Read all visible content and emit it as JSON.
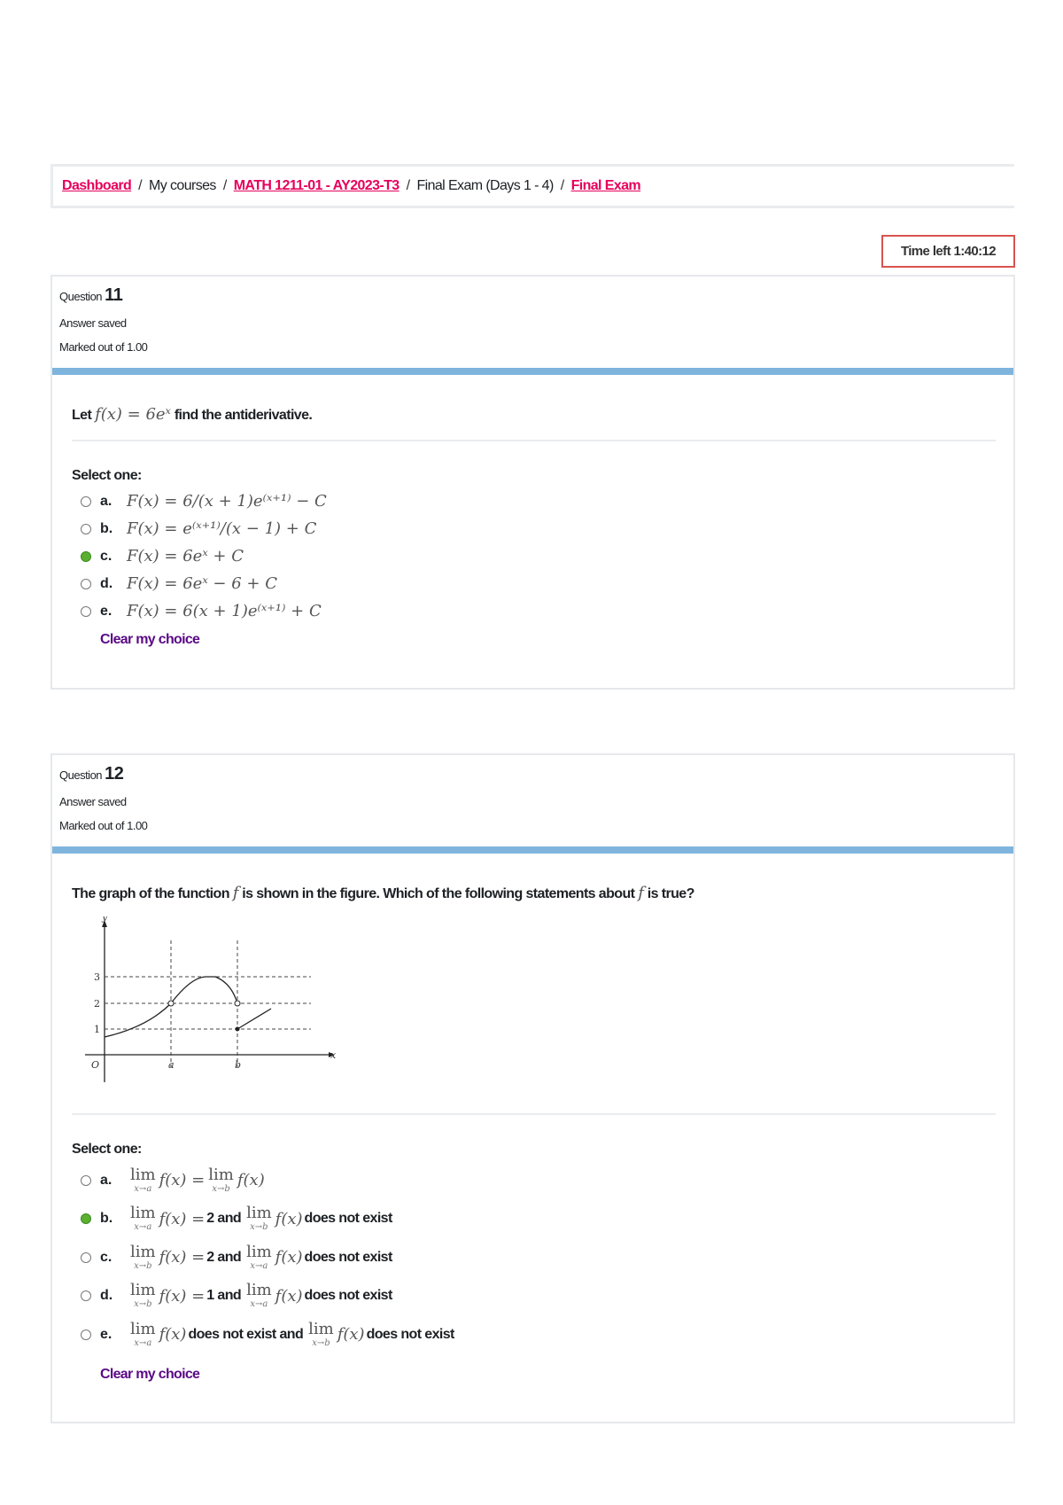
{
  "breadcrumb": [
    {
      "label": "Dashboard",
      "link": true
    },
    {
      "label": "My courses",
      "link": false
    },
    {
      "label": "MATH 1211-01 - AY2023-T3",
      "link": true
    },
    {
      "label": "Final Exam (Days 1 - 4)",
      "link": false
    },
    {
      "label": "Final Exam",
      "link": true
    }
  ],
  "breadcrumb_sep": "/",
  "timer": "Time left 1:40:12",
  "q11": {
    "question_label": "Question",
    "number": "11",
    "status": "Answer saved",
    "marked": "Marked out of 1.00",
    "text_pre": "Let",
    "math": "f(x) = 6eˣ",
    "text_post": "find the antiderivative.",
    "select_label": "Select one:",
    "options": [
      {
        "letter": "a.",
        "math": "F(x) = 6/(x + 1)e⁽ˣ⁺¹⁾ − C",
        "selected": false
      },
      {
        "letter": "b.",
        "math": "F(x) = e⁽ˣ⁺¹⁾/(x − 1) + C",
        "selected": false
      },
      {
        "letter": "c.",
        "math": "F(x) = 6eˣ + C",
        "selected": true
      },
      {
        "letter": "d.",
        "math": "F(x) = 6eˣ − 6 + C",
        "selected": false
      },
      {
        "letter": "e.",
        "math": "F(x) = 6(x + 1)e⁽ˣ⁺¹⁾ + C",
        "selected": false
      }
    ],
    "clear": "Clear my choice"
  },
  "q12": {
    "question_label": "Question",
    "number": "12",
    "status": "Answer saved",
    "marked": "Marked out of 1.00",
    "text_pre": "The graph of the function",
    "math": "f",
    "text_mid": "is shown in the figure. Which of the following statements about",
    "math2": "f",
    "text_post": "is true?",
    "graph_labels": {
      "y": "y",
      "x": "x",
      "o": "O",
      "a": "a",
      "b": "b",
      "t1": "1",
      "t2": "2",
      "t3": "3"
    },
    "select_label": "Select one:",
    "options": [
      {
        "letter": "a.",
        "selected": false,
        "parts": [
          {
            "lim": "x→a"
          },
          {
            "m": "f(x) ="
          },
          {
            "lim": "x→b"
          },
          {
            "m": "f(x)"
          }
        ]
      },
      {
        "letter": "b.",
        "selected": true,
        "parts": [
          {
            "lim": "x→a"
          },
          {
            "m": "f(x) ="
          },
          {
            "t": "2 and"
          },
          {
            "lim": "x→b"
          },
          {
            "m": "f(x)"
          },
          {
            "t": "does not exist"
          }
        ]
      },
      {
        "letter": "c.",
        "selected": false,
        "parts": [
          {
            "lim": "x→b"
          },
          {
            "m": "f(x) ="
          },
          {
            "t": "2 and"
          },
          {
            "lim": "x→a"
          },
          {
            "m": "f(x)"
          },
          {
            "t": "does not exist"
          }
        ]
      },
      {
        "letter": "d.",
        "selected": false,
        "parts": [
          {
            "lim": "x→b"
          },
          {
            "m": "f(x) ="
          },
          {
            "t": "1 and"
          },
          {
            "lim": "x→a"
          },
          {
            "m": "f(x)"
          },
          {
            "t": "does not exist"
          }
        ]
      },
      {
        "letter": "e.",
        "selected": false,
        "parts": [
          {
            "lim": "x→a"
          },
          {
            "m": "f(x)"
          },
          {
            "t": "does not exist and"
          },
          {
            "lim": "x→b"
          },
          {
            "m": "f(x)"
          },
          {
            "t": "does not exist"
          }
        ]
      }
    ],
    "lim_word": "lim",
    "clear": "Clear my choice"
  },
  "colors": {
    "link": "#e6005c",
    "selected": "#5cb030",
    "bar": "#7fb5dd",
    "timer_border": "#d9534f",
    "clear": "#5a0a86"
  }
}
